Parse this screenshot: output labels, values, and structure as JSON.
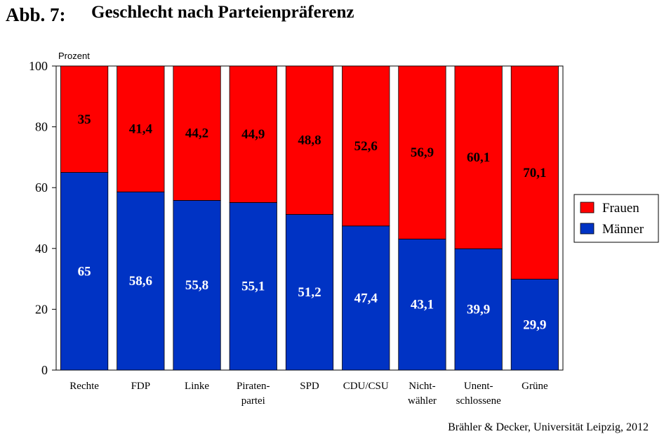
{
  "figure_label": "Abb. 7:",
  "source": "Brähler & Decker, Universität Leipzig, 2012",
  "chart_data": {
    "type": "bar",
    "stacked": true,
    "title": "Geschlecht nach Parteienpräferenz",
    "ylabel": "Prozent",
    "ylim": [
      0,
      100
    ],
    "yticks": [
      0,
      20,
      40,
      60,
      80,
      100
    ],
    "categories": [
      [
        "Rechte"
      ],
      [
        "FDP"
      ],
      [
        "Linke"
      ],
      [
        "Piraten-",
        "partei"
      ],
      [
        "SPD"
      ],
      [
        "CDU/CSU"
      ],
      [
        "Nicht-",
        "wähler"
      ],
      [
        "Unent-",
        "schlossene"
      ],
      [
        "Grüne"
      ]
    ],
    "series": [
      {
        "name": "Männer",
        "color": "#0033c4",
        "label_color": "#ffffff",
        "values": [
          65,
          58.6,
          55.8,
          55.1,
          51.2,
          47.4,
          43.1,
          39.9,
          29.9
        ],
        "labels": [
          "65",
          "58,6",
          "55,8",
          "55,1",
          "51,2",
          "47,4",
          "43,1",
          "39,9",
          "29,9"
        ]
      },
      {
        "name": "Frauen",
        "color": "#ff0000",
        "label_color": "#000000",
        "values": [
          35,
          41.4,
          44.2,
          44.9,
          48.8,
          52.6,
          56.9,
          60.1,
          70.1
        ],
        "labels": [
          "35",
          "41,4",
          "44,2",
          "44,9",
          "48,8",
          "52,6",
          "56,9",
          "60,1",
          "70,1"
        ]
      }
    ],
    "legend": {
      "placement": "right",
      "order": [
        "Frauen",
        "Männer"
      ]
    },
    "grid": false
  }
}
